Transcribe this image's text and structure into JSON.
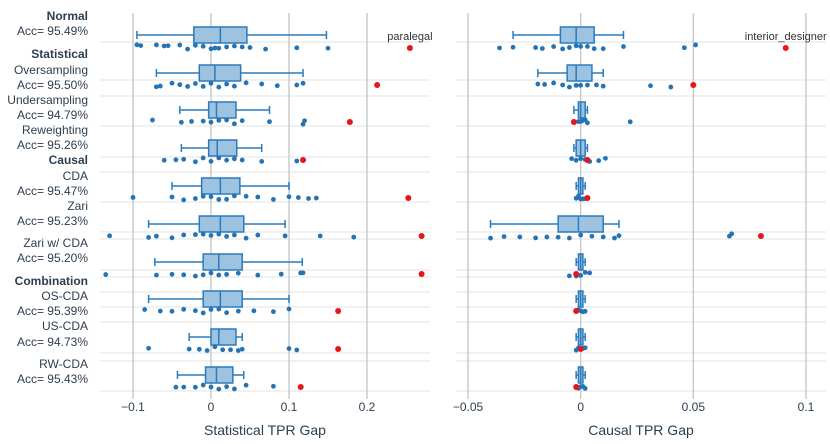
{
  "chart_data": {
    "type": "box",
    "panels": [
      {
        "xlabel": "Statistical TPR Gap",
        "xlim": [
          -0.16,
          0.265
        ],
        "ticks": [
          -0.1,
          0,
          0.1,
          0.2
        ],
        "tick_labels": [
          "−0.1",
          "0",
          "0.1",
          "0.2"
        ],
        "outlier_label": "paralegal",
        "outlier_label_at": 0
      },
      {
        "xlabel": "Causal TPR Gap",
        "xlim": [
          -0.06,
          0.105
        ],
        "ticks": [
          -0.05,
          0,
          0.05,
          0.1
        ],
        "tick_labels": [
          "−0.05",
          "0",
          "0.05",
          "0.1"
        ],
        "outlier_label": "interior_designer",
        "outlier_label_at": 0
      }
    ],
    "rows": [
      {
        "group": "Normal",
        "method": "",
        "acc": "Acc= 95.49%",
        "stat": {
          "whisker": [
            -0.095,
            0.148
          ],
          "box": [
            -0.022,
            0.046
          ],
          "median": 0.012,
          "points": [
            -0.095,
            -0.09,
            -0.07,
            -0.06,
            -0.055,
            -0.04,
            -0.03,
            -0.02,
            -0.01,
            0.0,
            0.005,
            0.01,
            0.02,
            0.03,
            0.04,
            0.05,
            0.07,
            0.11,
            0.15
          ],
          "highlight": 0.255
        },
        "causal": {
          "whisker": [
            -0.03,
            0.019
          ],
          "box": [
            -0.009,
            0.006
          ],
          "median": -0.002,
          "points": [
            -0.036,
            -0.03,
            -0.02,
            -0.017,
            -0.012,
            -0.008,
            -0.005,
            -0.002,
            0.0,
            0.003,
            0.006,
            0.01,
            0.019,
            0.046,
            0.051
          ],
          "highlight": 0.091
        }
      },
      {
        "group": "Statistical",
        "method": "Oversampling",
        "acc": "Acc= 95.50%",
        "stat": {
          "whisker": [
            -0.07,
            0.118
          ],
          "box": [
            -0.015,
            0.038
          ],
          "median": 0.005,
          "points": [
            -0.07,
            -0.065,
            -0.05,
            -0.04,
            -0.03,
            -0.02,
            -0.01,
            0.0,
            0.01,
            0.02,
            0.03,
            0.045,
            0.065,
            0.085,
            0.11,
            0.118
          ],
          "highlight": 0.213
        },
        "causal": {
          "whisker": [
            -0.019,
            0.01
          ],
          "box": [
            -0.006,
            0.005
          ],
          "median": -0.002,
          "points": [
            -0.019,
            -0.016,
            -0.012,
            -0.008,
            -0.005,
            -0.002,
            0.0,
            0.003,
            0.007,
            0.01,
            0.031,
            0.04
          ],
          "highlight": 0.05
        }
      },
      {
        "group": "",
        "method": "Undersampling",
        "acc": "Acc= 94.79%",
        "stat": {
          "whisker": [
            -0.04,
            0.075
          ],
          "box": [
            -0.003,
            0.032
          ],
          "median": 0.007,
          "points": [
            -0.075,
            -0.038,
            -0.025,
            -0.01,
            0.0,
            0.01,
            0.02,
            0.03,
            0.04,
            0.075,
            0.118,
            0.12
          ],
          "highlight": 0.178
        },
        "causal": {
          "whisker": [
            -0.003,
            0.003
          ],
          "box": [
            -0.001,
            0.002
          ],
          "median": 0.0,
          "points": [
            -0.003,
            -0.001,
            0.0,
            0.001,
            0.002,
            0.003,
            0.022
          ],
          "highlight": -0.003
        }
      },
      {
        "group": "",
        "method": "Reweighting",
        "acc": "Acc= 95.26%",
        "stat": {
          "whisker": [
            -0.038,
            0.065
          ],
          "box": [
            -0.003,
            0.033
          ],
          "median": 0.008,
          "points": [
            -0.06,
            -0.045,
            -0.035,
            -0.02,
            -0.01,
            0.0,
            0.01,
            0.02,
            0.03,
            0.04,
            0.065,
            0.11
          ],
          "highlight": 0.118
        },
        "causal": {
          "whisker": [
            -0.003,
            0.003
          ],
          "box": [
            -0.002,
            0.002
          ],
          "median": 0.0,
          "points": [
            -0.004,
            -0.002,
            0.0,
            0.002,
            0.004,
            0.008,
            0.011
          ],
          "highlight": 0.003
        }
      },
      {
        "group": "Causal",
        "method": "CDA",
        "acc": "Acc= 95.47%",
        "stat": {
          "whisker": [
            -0.05,
            0.1
          ],
          "box": [
            -0.012,
            0.037
          ],
          "median": 0.012,
          "points": [
            -0.1,
            -0.05,
            -0.035,
            -0.02,
            -0.01,
            0.0,
            0.01,
            0.02,
            0.03,
            0.045,
            0.06,
            0.08,
            0.1,
            0.112,
            0.125,
            0.135
          ],
          "highlight": 0.253
        },
        "causal": {
          "whisker": [
            -0.002,
            0.002
          ],
          "box": [
            -0.001,
            0.001
          ],
          "median": 0.0,
          "points": [
            -0.002,
            -0.001,
            0.0,
            0.001,
            0.002
          ],
          "highlight": 0.003
        }
      },
      {
        "group": "",
        "method": "Zari",
        "acc": "Acc= 95.23%",
        "stat": {
          "whisker": [
            -0.08,
            0.095
          ],
          "box": [
            -0.015,
            0.042
          ],
          "median": 0.012,
          "points": [
            -0.13,
            -0.08,
            -0.07,
            -0.05,
            -0.035,
            -0.02,
            -0.01,
            0.0,
            0.01,
            0.02,
            0.03,
            0.045,
            0.06,
            0.095,
            0.14,
            0.183
          ],
          "highlight": 0.27
        },
        "causal": {
          "whisker": [
            -0.04,
            0.017
          ],
          "box": [
            -0.01,
            0.01
          ],
          "median": -0.001,
          "points": [
            -0.04,
            -0.034,
            -0.027,
            -0.02,
            -0.015,
            -0.01,
            -0.005,
            0.0,
            0.005,
            0.01,
            0.015,
            0.017,
            0.066,
            0.067
          ],
          "highlight": 0.08
        }
      },
      {
        "group": "",
        "method": "Zari w/ CDA",
        "acc": "Acc= 95.20%",
        "stat": {
          "whisker": [
            -0.072,
            0.117
          ],
          "box": [
            -0.01,
            0.04
          ],
          "median": 0.01,
          "points": [
            -0.135,
            -0.07,
            -0.05,
            -0.035,
            -0.02,
            -0.01,
            0.0,
            0.01,
            0.02,
            0.035,
            0.06,
            0.09,
            0.115,
            0.118
          ],
          "highlight": 0.27
        },
        "causal": {
          "whisker": [
            -0.002,
            0.002
          ],
          "box": [
            -0.001,
            0.001
          ],
          "median": 0.0,
          "points": [
            -0.005,
            -0.002,
            0.0,
            0.002,
            0.004
          ],
          "highlight": -0.002
        }
      },
      {
        "group": "Combination",
        "method": "OS-CDA",
        "acc": "Acc= 95.39%",
        "stat": {
          "whisker": [
            -0.08,
            0.1
          ],
          "box": [
            -0.01,
            0.04
          ],
          "median": 0.012,
          "points": [
            -0.085,
            -0.065,
            -0.05,
            -0.035,
            -0.02,
            -0.01,
            0.0,
            0.01,
            0.02,
            0.035,
            0.055,
            0.08,
            0.1
          ],
          "highlight": 0.163
        },
        "causal": {
          "whisker": [
            -0.002,
            0.002
          ],
          "box": [
            -0.001,
            0.001
          ],
          "median": 0.0,
          "points": [
            -0.002,
            -0.001,
            0.0,
            0.001,
            0.002
          ],
          "highlight": -0.002
        }
      },
      {
        "group": "",
        "method": "US-CDA",
        "acc": "Acc= 94.73%",
        "stat": {
          "whisker": [
            -0.028,
            0.04
          ],
          "box": [
            0.0,
            0.032
          ],
          "median": 0.01,
          "points": [
            -0.08,
            -0.028,
            -0.015,
            -0.005,
            0.005,
            0.015,
            0.025,
            0.035,
            0.04,
            0.1,
            0.11
          ],
          "highlight": 0.163
        },
        "causal": {
          "whisker": [
            -0.002,
            0.002
          ],
          "box": [
            -0.001,
            0.001
          ],
          "median": 0.0,
          "points": [
            -0.002,
            -0.001,
            0.0,
            0.001,
            0.002
          ],
          "highlight": 0.0
        }
      },
      {
        "group": "",
        "method": "RW-CDA",
        "acc": "Acc= 95.43%",
        "stat": {
          "whisker": [
            -0.043,
            0.042
          ],
          "box": [
            -0.007,
            0.028
          ],
          "median": 0.007,
          "points": [
            -0.045,
            -0.035,
            -0.02,
            -0.01,
            0.0,
            0.01,
            0.02,
            0.03,
            0.045,
            0.08
          ],
          "highlight": 0.115
        },
        "causal": {
          "whisker": [
            -0.002,
            0.002
          ],
          "box": [
            -0.001,
            0.001
          ],
          "median": 0.0,
          "points": [
            -0.002,
            -0.001,
            0.0,
            0.001,
            0.002
          ],
          "highlight": -0.002
        }
      }
    ],
    "colors": {
      "box_fill": "#9ec3e1",
      "box_stroke": "#2a7bbd",
      "point": "#2474b5",
      "highlight": "#e8141b",
      "grid": "#c8c8c8",
      "text": "#2c3e50"
    },
    "grid": true
  }
}
